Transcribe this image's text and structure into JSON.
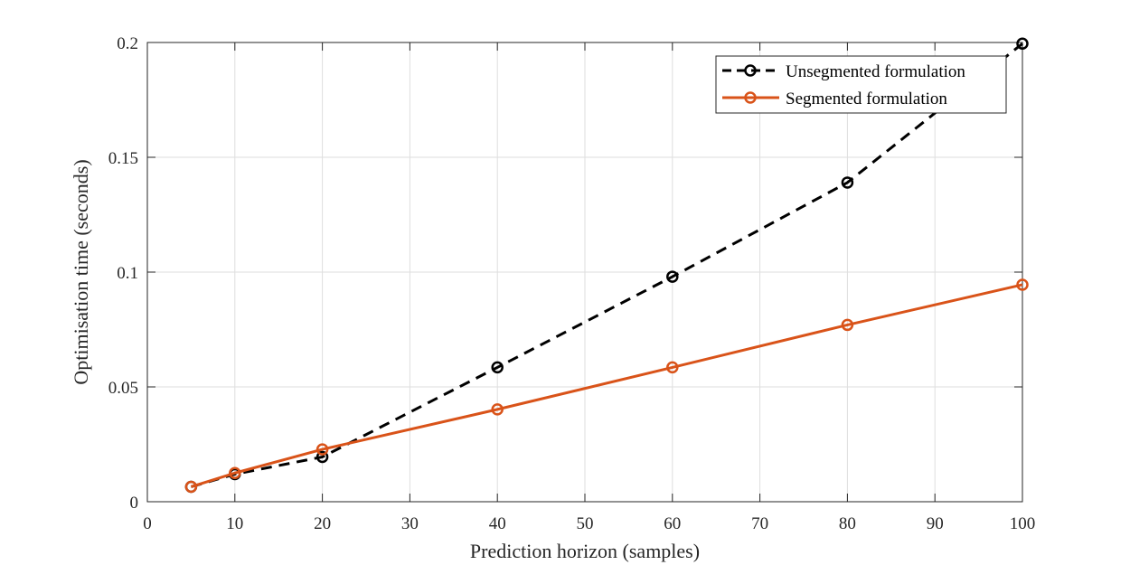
{
  "chart_data": {
    "type": "line",
    "title": "",
    "xlabel": "Prediction horizon (samples)",
    "ylabel": "Optimisation time (seconds)",
    "xlim": [
      0,
      100
    ],
    "ylim": [
      0,
      0.2
    ],
    "xticks": [
      0,
      10,
      20,
      30,
      40,
      50,
      60,
      70,
      80,
      90,
      100
    ],
    "yticks": [
      0,
      0.05,
      0.1,
      0.15,
      0.2
    ],
    "xtick_labels": [
      "0",
      "10",
      "20",
      "30",
      "40",
      "50",
      "60",
      "70",
      "80",
      "90",
      "100"
    ],
    "ytick_labels": [
      "0",
      "0.05",
      "0.1",
      "0.15",
      "0.2"
    ],
    "grid": true,
    "legend_position": "top-right",
    "series": [
      {
        "name": "Unsegmented formulation",
        "color": "#000000",
        "line_style": "dashed",
        "marker": "circle",
        "x": [
          5,
          10,
          20,
          40,
          60,
          80,
          100
        ],
        "y": [
          0.0065,
          0.012,
          0.0195,
          0.0585,
          0.098,
          0.139,
          0.1995
        ]
      },
      {
        "name": "Segmented formulation",
        "color": "#d95319",
        "line_style": "solid",
        "marker": "circle",
        "x": [
          5,
          10,
          20,
          40,
          60,
          80,
          100
        ],
        "y": [
          0.0065,
          0.0125,
          0.0228,
          0.0402,
          0.0585,
          0.077,
          0.0945
        ]
      }
    ]
  }
}
